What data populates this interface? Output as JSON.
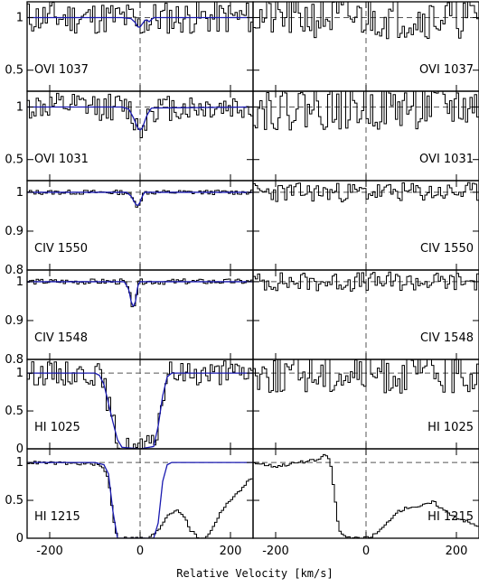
{
  "chart_data": {
    "type": "line",
    "title": "",
    "xlabel": "Relative Velocity [km/s]",
    "ylabel": "",
    "xlim": [
      -250,
      250
    ],
    "x_ticks": [
      -200,
      0,
      200
    ],
    "x_tick_labels": [
      "-200",
      "0",
      "200"
    ],
    "grid": false,
    "columns": 2,
    "panels": [
      {
        "label": "OVI  1037",
        "ylim": [
          0.3,
          1.15
        ],
        "y_ticks": [
          0.5,
          1.0
        ],
        "y_tick_labels": [
          "0.5",
          "1"
        ],
        "fit_left": {
          "x": [
            -250,
            -40,
            -20,
            -10,
            -5,
            0,
            5,
            10,
            15,
            20,
            30,
            250
          ],
          "y": [
            1.0,
            1.0,
            0.99,
            0.95,
            0.91,
            0.91,
            0.94,
            0.97,
            0.98,
            0.96,
            1.0,
            1.0
          ]
        },
        "data_left_seed": 11,
        "data_left_noise": 0.16,
        "data_right_seed": 21,
        "data_right_noise": 0.2
      },
      {
        "label": "OVI  1031",
        "ylim": [
          0.3,
          1.15
        ],
        "y_ticks": [
          0.5,
          1.0
        ],
        "y_tick_labels": [
          "0.5",
          "1"
        ],
        "fit_left": {
          "x": [
            -250,
            -40,
            -25,
            -15,
            -5,
            0,
            5,
            15,
            25,
            250
          ],
          "y": [
            1.0,
            1.0,
            0.98,
            0.9,
            0.8,
            0.78,
            0.8,
            0.92,
            0.99,
            1.0
          ]
        },
        "data_left_seed": 12,
        "data_left_noise": 0.13,
        "data_right_seed": 22,
        "data_right_noise": 0.22
      },
      {
        "label": "CIV  1550",
        "ylim": [
          0.8,
          1.03
        ],
        "y_ticks": [
          0.8,
          0.9,
          1.0
        ],
        "y_tick_labels": [
          "0.8",
          "0.9",
          "1"
        ],
        "fit_left": {
          "x": [
            -250,
            -30,
            -20,
            -15,
            -10,
            -5,
            0,
            5,
            10,
            250
          ],
          "y": [
            1.0,
            1.0,
            0.99,
            0.98,
            0.97,
            0.965,
            0.975,
            0.99,
            1.0,
            1.0
          ]
        },
        "data_left_seed": 13,
        "data_left_noise": 0.006,
        "data_right_seed": 23,
        "data_right_noise": 0.025
      },
      {
        "label": "CIV  1548",
        "ylim": [
          0.8,
          1.03
        ],
        "y_ticks": [
          0.8,
          0.9,
          1.0
        ],
        "y_tick_labels": [
          "0.8",
          "0.9",
          "1"
        ],
        "fit_left": {
          "x": [
            -250,
            -35,
            -25,
            -20,
            -15,
            -10,
            -5,
            0,
            250
          ],
          "y": [
            1.0,
            1.0,
            0.98,
            0.95,
            0.935,
            0.95,
            0.99,
            1.0,
            1.0
          ]
        },
        "data_left_seed": 14,
        "data_left_noise": 0.007,
        "data_right_seed": 24,
        "data_right_noise": 0.025
      },
      {
        "label": "HI  1025",
        "ylim": [
          0,
          1.18
        ],
        "y_ticks": [
          0,
          0.5,
          1.0
        ],
        "y_tick_labels": [
          "0",
          "0.5",
          "1"
        ],
        "fit_left": {
          "x": [
            -250,
            -100,
            -90,
            -80,
            -70,
            -60,
            -50,
            -40,
            0,
            30,
            40,
            50,
            60,
            70,
            250
          ],
          "y": [
            1.0,
            1.0,
            0.97,
            0.85,
            0.6,
            0.35,
            0.12,
            0.02,
            0.0,
            0.03,
            0.3,
            0.7,
            0.95,
            1.0,
            1.0
          ]
        },
        "data_left_seed": 15,
        "data_left_noise": 0.16,
        "data_right_seed": 25,
        "data_right_noise": 0.28
      },
      {
        "label": "HI  1215",
        "ylim": [
          0,
          1.18
        ],
        "y_ticks": [
          0,
          0.5,
          1.0
        ],
        "y_tick_labels": [
          "0",
          "0.5",
          "1"
        ],
        "fit_left": {
          "x": [
            -250,
            -100,
            -80,
            -70,
            -60,
            -50,
            30,
            40,
            50,
            60,
            70,
            250
          ],
          "y": [
            1.0,
            1.0,
            0.97,
            0.85,
            0.35,
            0.0,
            0.0,
            0.2,
            0.75,
            0.97,
            1.0,
            1.0
          ]
        },
        "data_left_seed": 16,
        "data_left_noise": 0.02,
        "data_right_seed": 26,
        "data_right_noise": 0.02,
        "profile_left": {
          "x": [
            -250,
            -100,
            -85,
            -70,
            -60,
            -50,
            20,
            40,
            60,
            80,
            95,
            110,
            130,
            150,
            170,
            190,
            210,
            230,
            250
          ],
          "y": [
            1.0,
            0.98,
            0.95,
            0.8,
            0.3,
            0.0,
            0.0,
            0.1,
            0.3,
            0.38,
            0.32,
            0.12,
            0.0,
            0.02,
            0.25,
            0.45,
            0.55,
            0.7,
            0.8
          ]
        },
        "profile_right": {
          "x": [
            -250,
            -200,
            -150,
            -120,
            -100,
            -90,
            -80,
            -70,
            -60,
            -40,
            0,
            20,
            40,
            60,
            80,
            100,
            120,
            150,
            170,
            200,
            250
          ],
          "y": [
            1.0,
            0.95,
            1.0,
            1.02,
            1.05,
            1.1,
            1.05,
            0.6,
            0.1,
            0.0,
            0.0,
            0.05,
            0.15,
            0.3,
            0.38,
            0.42,
            0.42,
            0.48,
            0.38,
            0.28,
            0.15
          ]
        }
      }
    ],
    "colors": {
      "data": "#000000",
      "fit": "#1a1ab0",
      "reference": "#000000"
    }
  }
}
